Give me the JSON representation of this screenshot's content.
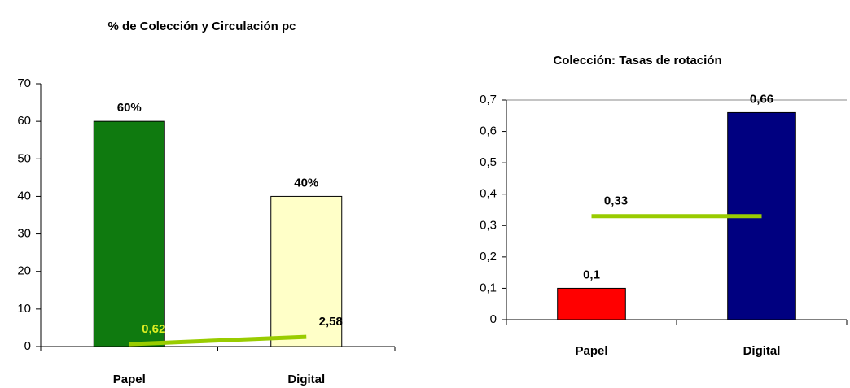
{
  "chart_data": [
    {
      "type": "bar",
      "title": "% de Colección y Circulación pc",
      "categories": [
        "Papel",
        "Digital"
      ],
      "bars": {
        "values": [
          60,
          40
        ],
        "value_labels": [
          "60%",
          "40%"
        ],
        "colors": [
          "#0f7a0f",
          "#ffffc8"
        ]
      },
      "line": {
        "values": [
          0.62,
          2.58
        ],
        "value_labels": [
          "0,62",
          "2,58"
        ],
        "color": "#99cc00",
        "label_colors": [
          "#ddee22",
          "#000000"
        ]
      },
      "ylim": [
        0,
        70
      ],
      "yticks": [
        0,
        10,
        20,
        30,
        40,
        50,
        60,
        70
      ]
    },
    {
      "type": "bar",
      "title": "Colección: Tasas de rotación",
      "categories": [
        "Papel",
        "Digital"
      ],
      "bars": {
        "values": [
          0.1,
          0.66
        ],
        "value_labels": [
          "0,1",
          "0,66"
        ],
        "colors": [
          "#ff0000",
          "#000080"
        ]
      },
      "line": {
        "values": [
          0.33,
          0.33
        ],
        "value_labels": [
          "0,33",
          null
        ],
        "color": "#99cc00",
        "label_colors": [
          "#000000",
          "#000000"
        ]
      },
      "ylim": [
        0,
        0.7
      ],
      "yticks": [
        0,
        {
          "value": 0.1,
          "label": "0,1"
        },
        {
          "value": 0.2,
          "label": "0,2"
        },
        {
          "value": 0.3,
          "label": "0,3"
        },
        {
          "value": 0.4,
          "label": "0,4"
        },
        {
          "value": 0.5,
          "label": "0,5"
        },
        {
          "value": 0.6,
          "label": "0,6"
        },
        {
          "value": 0.7,
          "label": "0,7"
        }
      ]
    }
  ]
}
